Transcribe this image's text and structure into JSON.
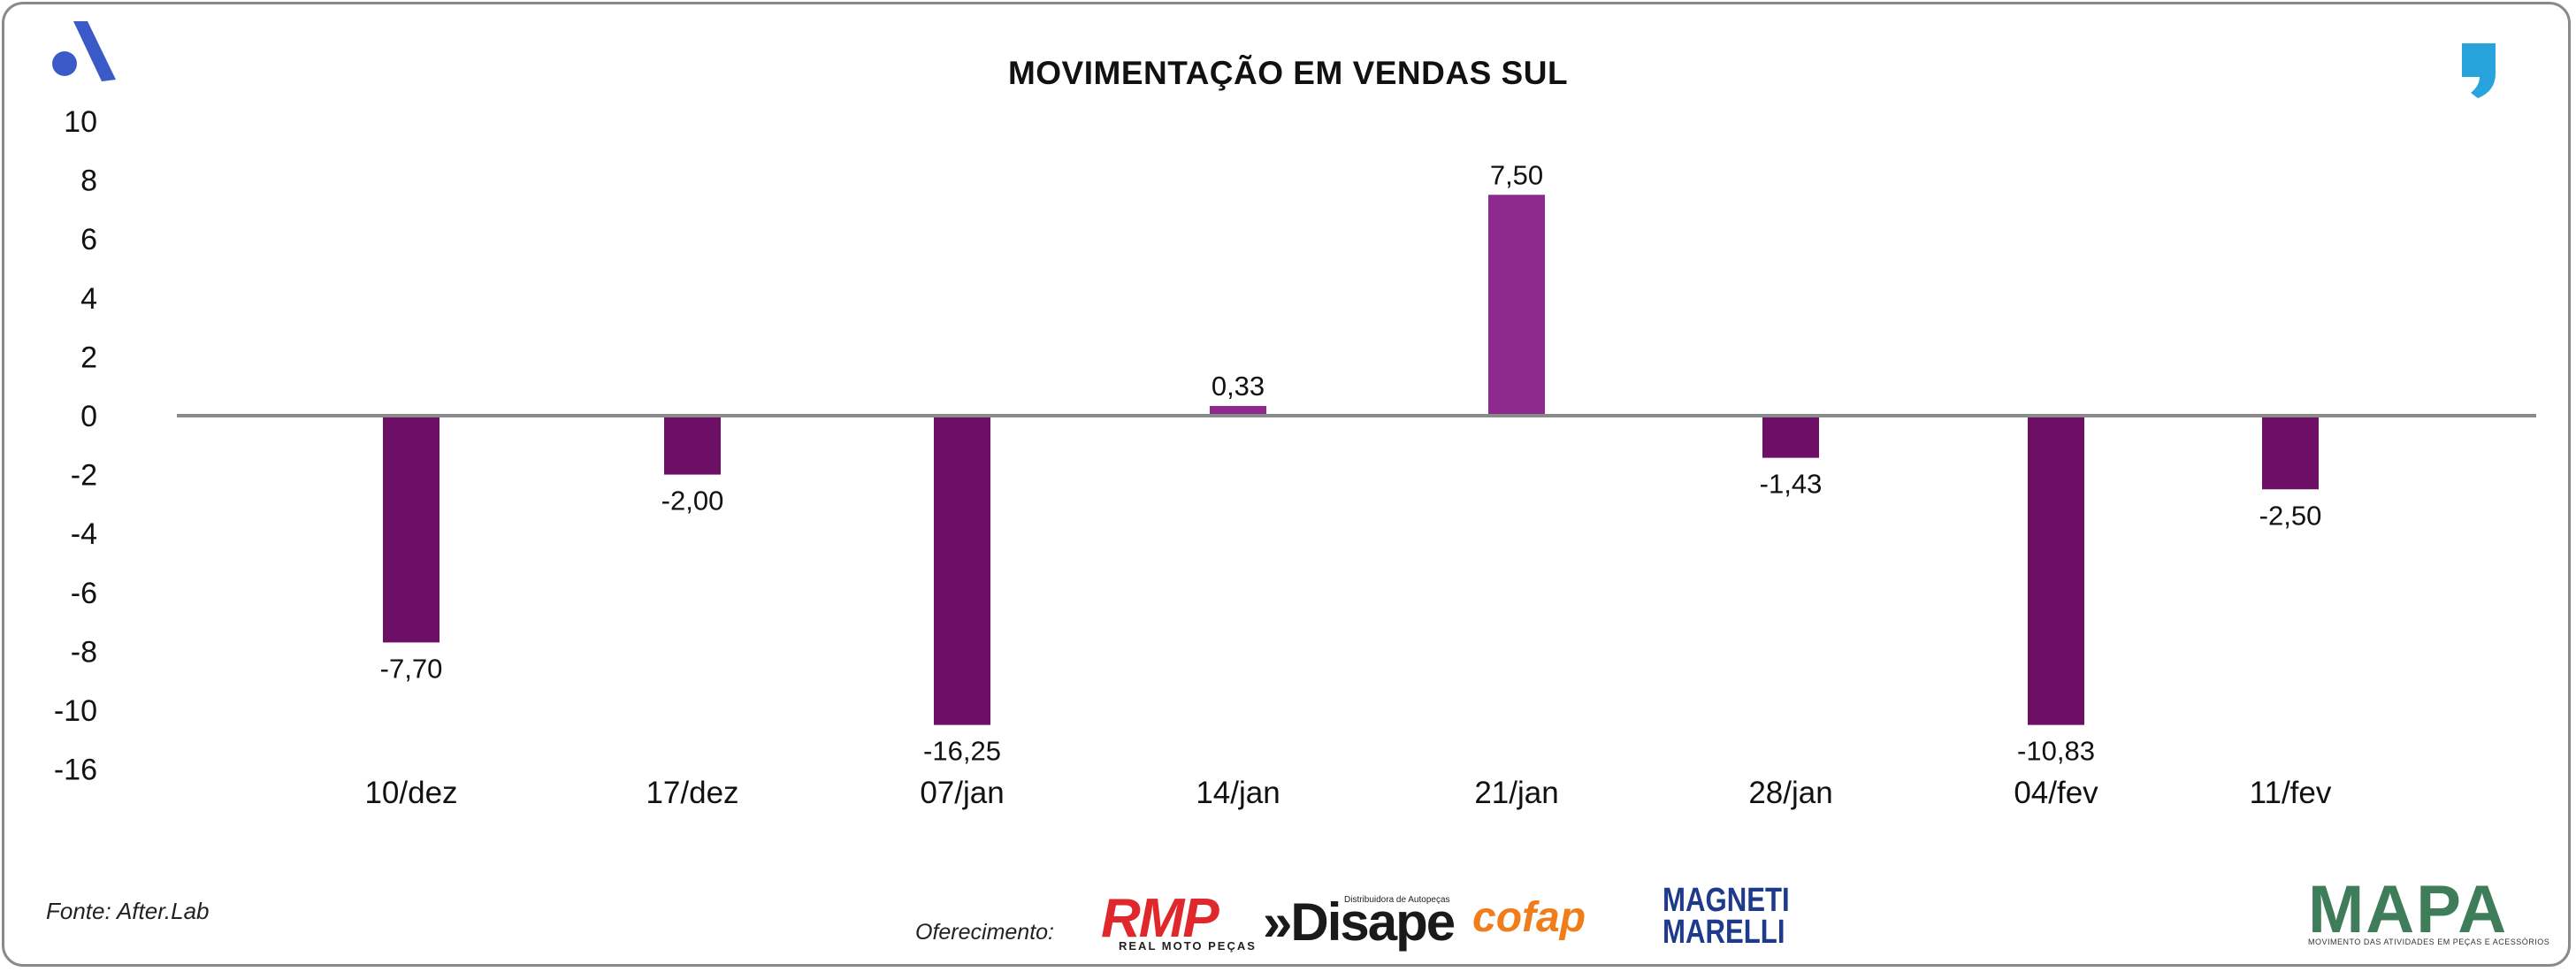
{
  "header": {
    "title": "MOVIMENTAÇÃO EM VENDAS SUL",
    "brand_logo_icon": "a-logo-icon",
    "quote_icon": "comma-quote-icon"
  },
  "footer": {
    "source": "Fonte: After.Lab",
    "sponsor_label": "Oferecimento:",
    "sponsors": {
      "rmp": "RMP",
      "rmp_sub": "REAL MOTO PEÇAS",
      "disape": "»Disape",
      "disape_sub": "Distribuidora de Autopeças",
      "cofap": "cofap",
      "magneti": "MAGNETI MARELLI"
    },
    "mapa": "MAPA",
    "mapa_sub": "MOVIMENTO DAS ATIVIDADES EM PEÇAS E ACESSÓRIOS"
  },
  "colors": {
    "negative_bar": "#6e0f66",
    "positive_bar": "#8e2a8e",
    "zero_line": "#8a8a8a",
    "brand_blue": "#3a5bc7",
    "quote_blue": "#29a3dc"
  },
  "chart_data": {
    "type": "bar",
    "title": "MOVIMENTAÇÃO EM VENDAS SUL",
    "categories": [
      "10/dez",
      "17/dez",
      "07/jan",
      "14/jan",
      "21/jan",
      "28/jan",
      "04/fev",
      "11/fev"
    ],
    "values": [
      -7.7,
      -2.0,
      -16.25,
      0.33,
      7.5,
      -1.43,
      -10.83,
      -2.5
    ],
    "value_labels": [
      "-7,70",
      "-2,00",
      "-16,25",
      "0,33",
      "7,50",
      "-1,43",
      "-10,83",
      "-2,50"
    ],
    "y_ticks": [
      "10",
      "8",
      "6",
      "4",
      "2",
      "0",
      "-2",
      "-4",
      "-6",
      "-8",
      "-10",
      "-16"
    ],
    "xlabel": "",
    "ylabel": "",
    "grid": false,
    "legend": "none"
  }
}
